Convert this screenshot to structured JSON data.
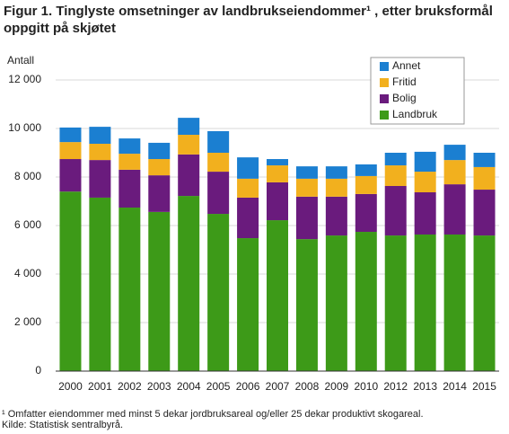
{
  "chart_data": {
    "type": "stacked-bar",
    "title": "Figur 1. Tinglyste omsetninger av landbrukseiendommer¹ , etter bruksformål oppgitt på skjøtet",
    "ylabel": "Antall",
    "categories": [
      "2000",
      "2001",
      "2002",
      "2003",
      "2004",
      "2005",
      "2006",
      "2007",
      "2008",
      "2009",
      "2010",
      "2012",
      "2013",
      "2014",
      "2015"
    ],
    "series": [
      {
        "name": "Landbruk",
        "color": "#3d9a18",
        "values": [
          7400,
          7150,
          6740,
          6560,
          7220,
          6480,
          5480,
          6220,
          5440,
          5590,
          5740,
          5590,
          5630,
          5630,
          5590
        ]
      },
      {
        "name": "Bolig",
        "color": "#6a1b7d",
        "values": [
          1340,
          1550,
          1560,
          1510,
          1710,
          1740,
          1670,
          1560,
          1750,
          1600,
          1560,
          2040,
          1740,
          2070,
          1890
        ]
      },
      {
        "name": "Fritid",
        "color": "#f2b01e",
        "values": [
          700,
          670,
          660,
          670,
          810,
          780,
          780,
          700,
          740,
          740,
          740,
          850,
          850,
          1000,
          930
        ]
      },
      {
        "name": "Annet",
        "color": "#1b7fd1",
        "values": [
          600,
          700,
          630,
          670,
          700,
          890,
          880,
          260,
          510,
          510,
          480,
          520,
          820,
          630,
          590
        ]
      }
    ],
    "ylim": [
      0,
      12000
    ],
    "yticks": [
      0,
      {
        "value": 2000,
        "label": "2 000"
      },
      {
        "value": 4000,
        "label": "4 000"
      },
      {
        "value": 6000,
        "label": "6 000"
      },
      {
        "value": 8000,
        "label": "8 000"
      },
      {
        "value": 10000,
        "label": "10 000"
      },
      {
        "value": 12000,
        "label": "12 000"
      }
    ],
    "grid": true,
    "legend": "top-right",
    "notes": [
      "¹ Omfatter eiendommer med minst 5 dekar jordbruksareal og/eller 25 dekar produktivt  skogareal.",
      "Kilde: Statistisk sentralbyrå."
    ]
  }
}
